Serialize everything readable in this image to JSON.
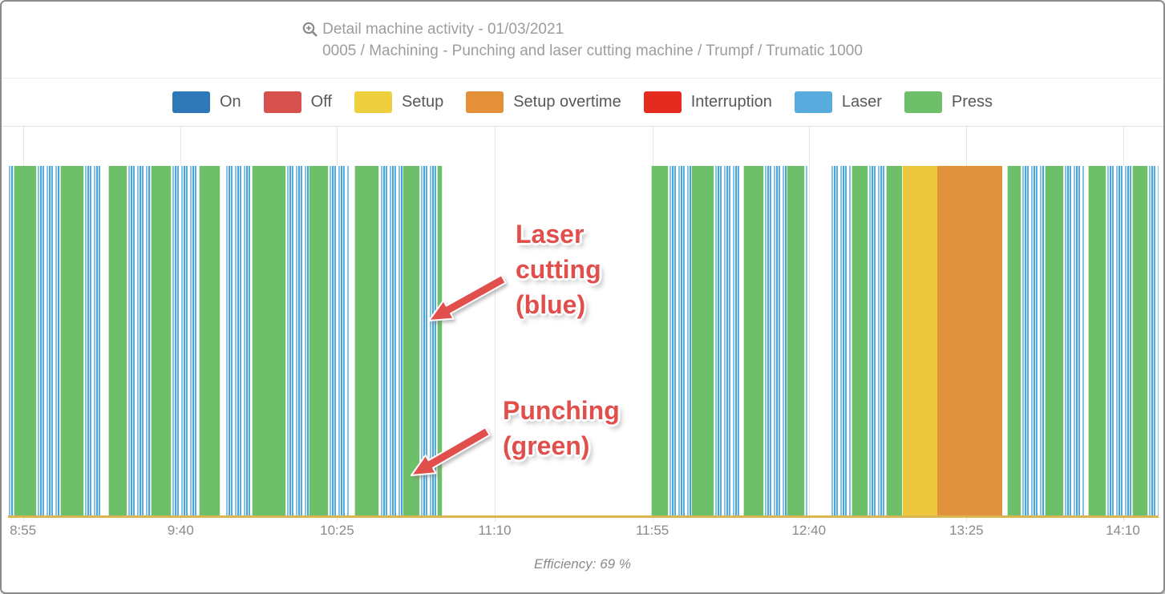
{
  "header": {
    "title": "Detail machine activity - 01/03/2021",
    "subtitle": "0005 / Machining - Punching and laser cutting machine / Trumpf / Trumatic 1000",
    "icon": "zoom-in-magnifier-icon"
  },
  "legend": {
    "items": [
      {
        "label": "On",
        "color": "#2e78b8"
      },
      {
        "label": "Off",
        "color": "#d6504e"
      },
      {
        "label": "Setup",
        "color": "#eecf3e"
      },
      {
        "label": "Setup overtime",
        "color": "#e39038"
      },
      {
        "label": "Interruption",
        "color": "#e42b1d"
      },
      {
        "label": "Laser",
        "color": "#58abdd"
      },
      {
        "label": "Press",
        "color": "#6ebf6a"
      }
    ]
  },
  "colors": {
    "press": "#6ebf6a",
    "laser": "#58abdd",
    "setup": "#ecc73e",
    "setup_overtime": "#e0923c",
    "idle": "transparent",
    "baseline": "#d9b651",
    "annotation": "#e14f4d",
    "gridline": "#e6e6e6"
  },
  "chart_data": {
    "type": "heatmap",
    "subtype": "machine-activity-timeline-barcode",
    "title": "Detail machine activity - 01/03/2021",
    "machine": "0005 / Machining - Punching and laser cutting machine / Trumpf / Trumatic 1000",
    "legend_position": "top-center",
    "grid": true,
    "x_axis": {
      "ticks": [
        {
          "label": "8:55",
          "pct": 1.3
        },
        {
          "label": "9:40",
          "pct": 15.0
        },
        {
          "label": "10:25",
          "pct": 28.6
        },
        {
          "label": "11:10",
          "pct": 42.3
        },
        {
          "label": "11:55",
          "pct": 56.0
        },
        {
          "label": "12:40",
          "pct": 69.6
        },
        {
          "label": "13:25",
          "pct": 83.3
        },
        {
          "label": "14:10",
          "pct": 96.9
        }
      ]
    },
    "segments": [
      {
        "state": "laser",
        "width_pct": 0.5
      },
      {
        "state": "press",
        "width_pct": 2.0
      },
      {
        "state": "laser",
        "width_pct": 2.0
      },
      {
        "state": "press",
        "width_pct": 2.1
      },
      {
        "state": "laser",
        "width_pct": 1.6
      },
      {
        "state": "idle",
        "width_pct": 0.5
      },
      {
        "state": "press",
        "width_pct": 1.7
      },
      {
        "state": "laser",
        "width_pct": 2.0
      },
      {
        "state": "press",
        "width_pct": 1.8
      },
      {
        "state": "laser",
        "width_pct": 2.4
      },
      {
        "state": "press",
        "width_pct": 1.9
      },
      {
        "state": "idle",
        "width_pct": 0.4
      },
      {
        "state": "laser",
        "width_pct": 2.3
      },
      {
        "state": "press",
        "width_pct": 3.0
      },
      {
        "state": "laser",
        "width_pct": 1.9
      },
      {
        "state": "press",
        "width_pct": 1.8
      },
      {
        "state": "laser",
        "width_pct": 1.7
      },
      {
        "state": "idle",
        "width_pct": 0.5
      },
      {
        "state": "press",
        "width_pct": 2.2
      },
      {
        "state": "laser",
        "width_pct": 2.0
      },
      {
        "state": "press",
        "width_pct": 1.5
      },
      {
        "state": "laser",
        "width_pct": 1.5
      },
      {
        "state": "press",
        "width_pct": 0.5
      },
      {
        "state": "idle",
        "width_pct": 18.1
      },
      {
        "state": "press",
        "width_pct": 1.5
      },
      {
        "state": "laser",
        "width_pct": 2.0
      },
      {
        "state": "press",
        "width_pct": 2.0
      },
      {
        "state": "laser",
        "width_pct": 2.2
      },
      {
        "state": "idle",
        "width_pct": 0.3
      },
      {
        "state": "press",
        "width_pct": 1.8
      },
      {
        "state": "laser",
        "width_pct": 2.0
      },
      {
        "state": "press",
        "width_pct": 1.6
      },
      {
        "state": "laser",
        "width_pct": 0.2
      },
      {
        "state": "idle",
        "width_pct": 2.0
      },
      {
        "state": "laser",
        "width_pct": 1.8
      },
      {
        "state": "press",
        "width_pct": 1.5
      },
      {
        "state": "laser",
        "width_pct": 1.5
      },
      {
        "state": "press",
        "width_pct": 1.5
      },
      {
        "state": "setup",
        "width_pct": 3.0
      },
      {
        "state": "setup_overtime",
        "width_pct": 5.6
      },
      {
        "state": "idle",
        "width_pct": 0.4
      },
      {
        "state": "press",
        "width_pct": 1.3
      },
      {
        "state": "laser",
        "width_pct": 2.0
      },
      {
        "state": "press",
        "width_pct": 1.7
      },
      {
        "state": "laser",
        "width_pct": 1.8
      },
      {
        "state": "idle",
        "width_pct": 0.3
      },
      {
        "state": "press",
        "width_pct": 1.6
      },
      {
        "state": "laser",
        "width_pct": 2.2
      },
      {
        "state": "press",
        "width_pct": 1.4
      },
      {
        "state": "laser",
        "width_pct": 0.9
      }
    ],
    "efficiency_label": "Efficiency: 69 %",
    "annotations": [
      {
        "lines": [
          "Laser",
          "cutting",
          "(blue)"
        ],
        "color": "#e14f4d",
        "points_to": "laser-stripes"
      },
      {
        "lines": [
          "Punching",
          "(green)"
        ],
        "color": "#e14f4d",
        "points_to": "green-press-bar"
      }
    ]
  }
}
